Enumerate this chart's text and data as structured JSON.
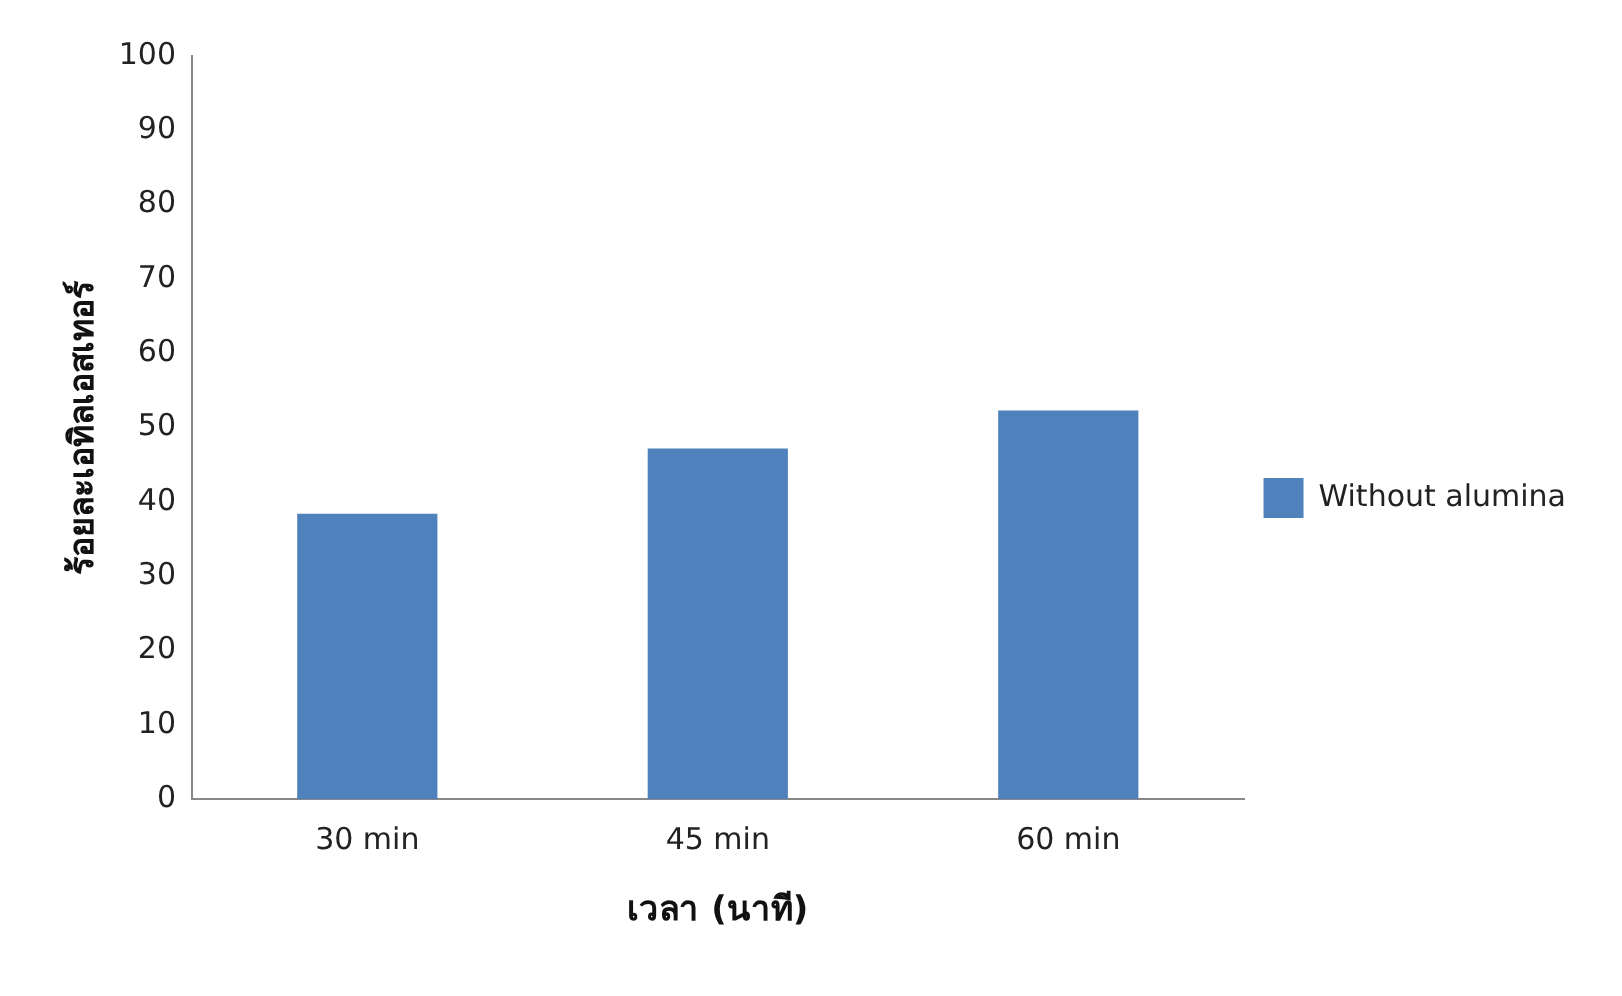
{
  "chart_data": {
    "type": "bar",
    "xlabel": "เวลา (นาที)",
    "ylabel": "ร้อยละเอทิลเอสเทอร์",
    "categories": [
      "30 min",
      "45 min",
      "60 min"
    ],
    "series": [
      {
        "name": "Without alumina",
        "color": "#4f81bd",
        "values": [
          38.4,
          47.2,
          52.3
        ]
      }
    ],
    "ylim": [
      0,
      100
    ],
    "yticks": [
      0,
      10,
      20,
      30,
      40,
      50,
      60,
      70,
      80,
      90,
      100
    ],
    "grid": false,
    "legend": "right"
  }
}
